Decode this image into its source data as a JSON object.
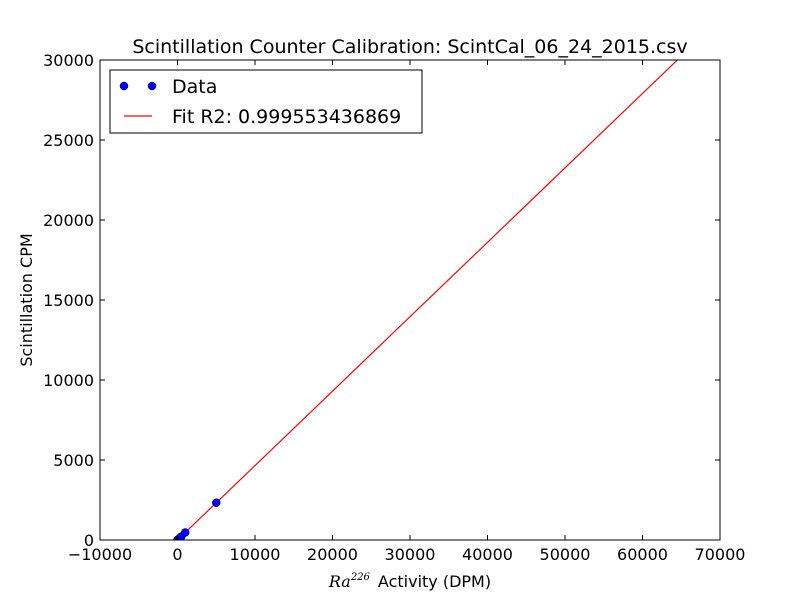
{
  "chart_data": {
    "type": "scatter",
    "title": "Scintillation Counter Calibration: ScintCal_06_24_2015.csv",
    "xlabel": {
      "math_base": "Ra",
      "math_sup": "226",
      "text": "Activity (DPM)"
    },
    "ylabel": "Scintillation CPM",
    "xlim": [
      -10000,
      70000
    ],
    "ylim": [
      0,
      30000
    ],
    "xticks": [
      -10000,
      0,
      10000,
      20000,
      30000,
      40000,
      50000,
      60000,
      70000
    ],
    "yticks": [
      0,
      5000,
      10000,
      15000,
      20000,
      25000,
      30000
    ],
    "xtick_labels": [
      "−10000",
      "0",
      "10000",
      "20000",
      "30000",
      "40000",
      "50000",
      "60000",
      "70000"
    ],
    "ytick_labels": [
      "0",
      "5000",
      "10000",
      "15000",
      "20000",
      "25000",
      "30000"
    ],
    "grid": false,
    "legend_position": "top-left",
    "series": [
      {
        "name": "Data",
        "kind": "points",
        "color": "#0000ff",
        "points": [
          {
            "x": 0,
            "y": 0
          },
          {
            "x": 100,
            "y": 45
          },
          {
            "x": 300,
            "y": 130
          },
          {
            "x": 500,
            "y": 220
          },
          {
            "x": 1000,
            "y": 470
          },
          {
            "x": 5000,
            "y": 2330
          }
        ]
      },
      {
        "name": "Fit R2: 0.999553436869",
        "kind": "line",
        "color": "#ff0000",
        "points": [
          {
            "x": 0,
            "y": 0
          },
          {
            "x": 64500,
            "y": 30000
          }
        ]
      }
    ]
  }
}
